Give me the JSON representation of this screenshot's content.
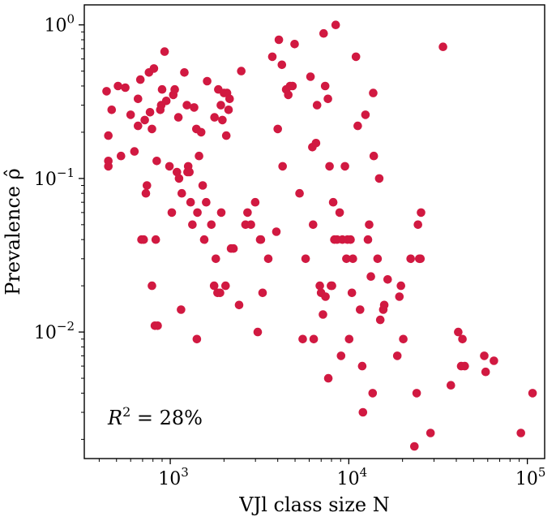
{
  "chart_data": {
    "type": "scatter",
    "xlabel": "VJl class size N",
    "ylabel": "Prevalence ρ̂",
    "xscale": "log",
    "yscale": "log",
    "xlim": [
      330,
      125000
    ],
    "ylim": [
      0.0015,
      1.35
    ],
    "x_ticks": [
      {
        "value": 1000,
        "base": "10",
        "exp": "3"
      },
      {
        "value": 10000,
        "base": "10",
        "exp": "4"
      },
      {
        "value": 100000,
        "base": "10",
        "exp": "5"
      }
    ],
    "y_ticks": [
      {
        "value": 1,
        "base": "10",
        "exp": "0"
      },
      {
        "value": 0.1,
        "base": "10",
        "exp": "−1"
      },
      {
        "value": 0.01,
        "base": "10",
        "exp": "−2"
      }
    ],
    "grid": false,
    "marker_color": "#d11941",
    "annotation": {
      "text": "R² = 28%",
      "lhs": "R",
      "sup": "2",
      "rhs": " = 28%"
    },
    "points": [
      [
        440,
        0.37
      ],
      [
        450,
        0.19
      ],
      [
        450,
        0.13
      ],
      [
        450,
        0.12
      ],
      [
        470,
        0.28
      ],
      [
        510,
        0.4
      ],
      [
        530,
        0.14
      ],
      [
        560,
        0.39
      ],
      [
        600,
        0.26
      ],
      [
        630,
        0.15
      ],
      [
        660,
        0.33
      ],
      [
        660,
        0.22
      ],
      [
        680,
        0.44
      ],
      [
        690,
        0.04
      ],
      [
        710,
        0.04
      ],
      [
        720,
        0.24
      ],
      [
        730,
        0.08
      ],
      [
        740,
        0.09
      ],
      [
        760,
        0.49
      ],
      [
        770,
        0.27
      ],
      [
        790,
        0.21
      ],
      [
        790,
        0.02
      ],
      [
        810,
        0.52
      ],
      [
        820,
        0.011
      ],
      [
        830,
        0.04
      ],
      [
        840,
        0.13
      ],
      [
        850,
        0.011
      ],
      [
        880,
        0.28
      ],
      [
        890,
        0.3
      ],
      [
        900,
        0.38
      ],
      [
        930,
        0.67
      ],
      [
        950,
        0.32
      ],
      [
        990,
        0.12
      ],
      [
        1020,
        0.06
      ],
      [
        1040,
        0.35
      ],
      [
        1060,
        0.38
      ],
      [
        1090,
        0.11
      ],
      [
        1110,
        0.25
      ],
      [
        1120,
        0.1
      ],
      [
        1150,
        0.014
      ],
      [
        1160,
        0.08
      ],
      [
        1200,
        0.49
      ],
      [
        1240,
        0.3
      ],
      [
        1250,
        0.11
      ],
      [
        1260,
        0.12
      ],
      [
        1280,
        0.11
      ],
      [
        1300,
        0.07
      ],
      [
        1330,
        0.05
      ],
      [
        1360,
        0.29
      ],
      [
        1400,
        0.21
      ],
      [
        1410,
        0.009
      ],
      [
        1420,
        0.06
      ],
      [
        1450,
        0.14
      ],
      [
        1490,
        0.2
      ],
      [
        1520,
        0.09
      ],
      [
        1550,
        0.04
      ],
      [
        1590,
        0.07
      ],
      [
        1610,
        0.43
      ],
      [
        1700,
        0.05
      ],
      [
        1760,
        0.02
      ],
      [
        1770,
        0.25
      ],
      [
        1800,
        0.03
      ],
      [
        1840,
        0.018
      ],
      [
        1860,
        0.38
      ],
      [
        1900,
        0.018
      ],
      [
        1920,
        0.3
      ],
      [
        1930,
        0.06
      ],
      [
        1960,
        0.24
      ],
      [
        2000,
        0.36
      ],
      [
        2040,
        0.02
      ],
      [
        2060,
        0.19
      ],
      [
        2080,
        0.36
      ],
      [
        2120,
        0.28
      ],
      [
        2150,
        0.33
      ],
      [
        2190,
        0.035
      ],
      [
        2260,
        0.035
      ],
      [
        2430,
        0.015
      ],
      [
        2500,
        0.5
      ],
      [
        2640,
        0.05
      ],
      [
        2710,
        0.06
      ],
      [
        2830,
        0.05
      ],
      [
        2990,
        0.07
      ],
      [
        3090,
        0.01
      ],
      [
        3190,
        0.04
      ],
      [
        3220,
        0.04
      ],
      [
        3290,
        0.018
      ],
      [
        3540,
        0.03
      ],
      [
        3730,
        0.62
      ],
      [
        3930,
        0.045
      ],
      [
        4000,
        0.21
      ],
      [
        4060,
        0.8
      ],
      [
        4220,
        0.55
      ],
      [
        4260,
        0.12
      ],
      [
        4460,
        0.38
      ],
      [
        4580,
        0.35
      ],
      [
        4690,
        0.4
      ],
      [
        4840,
        0.4
      ],
      [
        4970,
        0.75
      ],
      [
        5300,
        0.08
      ],
      [
        5520,
        0.009
      ],
      [
        5730,
        0.03
      ],
      [
        6100,
        0.46
      ],
      [
        6250,
        0.16
      ],
      [
        6310,
        0.05
      ],
      [
        6360,
        0.009
      ],
      [
        6550,
        0.17
      ],
      [
        6640,
        0.3
      ],
      [
        6880,
        0.02
      ],
      [
        7000,
        0.018
      ],
      [
        7170,
        0.013
      ],
      [
        7230,
        0.88
      ],
      [
        7370,
        0.4
      ],
      [
        7400,
        0.017
      ],
      [
        7640,
        0.33
      ],
      [
        7680,
        0.005
      ],
      [
        7800,
        0.12
      ],
      [
        7950,
        0.02
      ],
      [
        8050,
        0.02
      ],
      [
        8180,
        0.07
      ],
      [
        8310,
        0.04
      ],
      [
        8450,
        1.0
      ],
      [
        8600,
        0.04
      ],
      [
        8890,
        0.06
      ],
      [
        9050,
        0.007
      ],
      [
        9200,
        0.04
      ],
      [
        9510,
        0.12
      ],
      [
        9700,
        0.03
      ],
      [
        9830,
        0.04
      ],
      [
        10050,
        0.009
      ],
      [
        10230,
        0.04
      ],
      [
        10410,
        0.018
      ],
      [
        10540,
        0.03
      ],
      [
        10970,
        0.62
      ],
      [
        11220,
        0.22
      ],
      [
        11570,
        0.014
      ],
      [
        11890,
        0.006
      ],
      [
        12000,
        0.003
      ],
      [
        12400,
        0.26
      ],
      [
        12800,
        0.04
      ],
      [
        13000,
        0.05
      ],
      [
        13300,
        0.023
      ],
      [
        13600,
        0.004
      ],
      [
        13700,
        0.36
      ],
      [
        13800,
        0.14
      ],
      [
        14500,
        0.03
      ],
      [
        14800,
        0.1
      ],
      [
        15000,
        0.012
      ],
      [
        15600,
        0.014
      ],
      [
        15800,
        0.015
      ],
      [
        16500,
        0.022
      ],
      [
        18700,
        0.007
      ],
      [
        19200,
        0.017
      ],
      [
        19600,
        0.02
      ],
      [
        20200,
        0.009
      ],
      [
        22200,
        0.03
      ],
      [
        23300,
        0.0018
      ],
      [
        24000,
        0.004
      ],
      [
        24400,
        0.05
      ],
      [
        24800,
        0.03
      ],
      [
        25200,
        0.03
      ],
      [
        25400,
        0.06
      ],
      [
        28700,
        0.0022
      ],
      [
        33700,
        0.72
      ],
      [
        37300,
        0.0045
      ],
      [
        41000,
        0.01
      ],
      [
        42600,
        0.006
      ],
      [
        43300,
        0.009
      ],
      [
        44600,
        0.006
      ],
      [
        57400,
        0.007
      ],
      [
        58400,
        0.0055
      ],
      [
        65000,
        0.0065
      ],
      [
        92000,
        0.0022
      ],
      [
        107000,
        0.004
      ]
    ]
  }
}
